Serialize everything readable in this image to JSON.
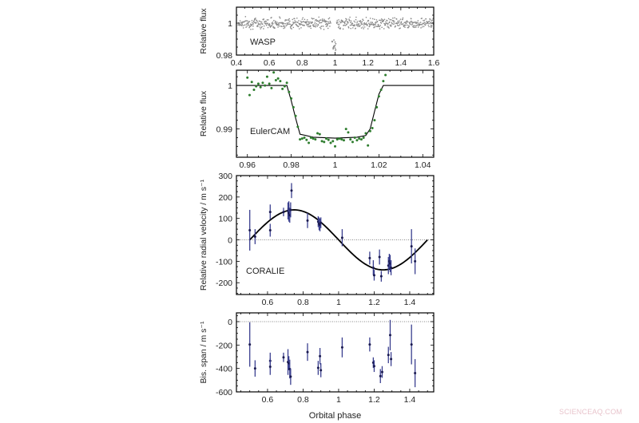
{
  "watermark": "SCIENCEAQ.COM",
  "colors": {
    "wasp_points": "#8a8a8a",
    "euler_points": "#2e7d2e",
    "rv_points": "#1a1a50",
    "rv_errorbars": "#3a3f8f",
    "model_line": "#000000",
    "axis": "#000000",
    "text": "#222222",
    "zero_line": "#888888"
  },
  "chart_data": [
    {
      "type": "scatter",
      "panel_label": "WASP",
      "ylabel": "Relative flux",
      "xlabel": "",
      "xlim": [
        0.4,
        1.6
      ],
      "ylim": [
        0.98,
        1.01
      ],
      "xticks": [
        "0.4",
        "0.6",
        "0.8",
        "1",
        "1.2",
        "1.4",
        "1.6"
      ],
      "xtick_values": [
        0.4,
        0.6,
        0.8,
        1.0,
        1.2,
        1.4,
        1.6
      ],
      "yticks": [
        "0.98",
        "1"
      ],
      "ytick_values": [
        0.98,
        1.0
      ],
      "description": "Dense photometry scattered around 1.0 (scatter ~±0.003) across phase 0.4–1.6, with transit dip to ~0.987 near phase 1.0 and a gap 0.98–1.01",
      "baseline": 1.0,
      "scatter": 0.0025,
      "transit": {
        "center": 0.995,
        "depth": 0.012,
        "width": 0.04
      }
    },
    {
      "type": "scatter",
      "panel_label": "EulerCAM",
      "ylabel": "Relative flux",
      "xlabel": "",
      "xlim": [
        0.955,
        1.045
      ],
      "ylim": [
        0.9835,
        1.0035
      ],
      "xticks": [
        "0.96",
        "0.98",
        "1",
        "1.02",
        "1.04"
      ],
      "xtick_values": [
        0.96,
        0.98,
        1.0,
        1.02,
        1.04
      ],
      "yticks": [
        "0.99",
        "1"
      ],
      "ytick_values": [
        0.99,
        1.0
      ],
      "model": {
        "type": "line",
        "x": [
          0.955,
          0.978,
          0.98,
          0.982,
          0.984,
          0.99,
          1.0,
          1.01,
          1.014,
          1.016,
          1.018,
          1.02,
          1.022,
          1.045
        ],
        "y": [
          1.0,
          1.0,
          0.9965,
          0.9925,
          0.9888,
          0.9881,
          0.9879,
          0.9881,
          0.9885,
          0.99,
          0.994,
          0.998,
          1.0,
          1.0
        ]
      },
      "x": [
        0.96,
        0.961,
        0.962,
        0.963,
        0.964,
        0.965,
        0.966,
        0.967,
        0.968,
        0.969,
        0.97,
        0.971,
        0.972,
        0.973,
        0.974,
        0.975,
        0.976,
        0.977,
        0.978,
        0.979,
        0.98,
        0.981,
        0.982,
        0.983,
        0.984,
        0.985,
        0.986,
        0.987,
        0.988,
        0.989,
        0.99,
        0.991,
        0.992,
        0.993,
        0.994,
        0.995,
        0.996,
        0.997,
        0.998,
        0.999,
        1.0,
        1.001,
        1.002,
        1.003,
        1.004,
        1.005,
        1.006,
        1.007,
        1.008,
        1.009,
        1.01,
        1.011,
        1.012,
        1.013,
        1.014,
        1.015,
        1.016,
        1.017,
        1.018,
        1.019,
        1.02,
        1.021,
        1.022,
        1.023
      ],
      "y": [
        1.0018,
        0.9978,
        1.0008,
        0.999,
        0.9998,
        1.0004,
        0.9996,
        1.0006,
        1.0,
        1.002,
        1.0004,
        0.9994,
        1.003,
        1.0012,
        1.0016,
        1.001,
        0.9992,
        0.9998,
        1.0006,
        0.9985,
        0.997,
        0.995,
        0.993,
        0.9905,
        0.9876,
        0.9878,
        0.988,
        0.9875,
        0.9868,
        0.988,
        0.9878,
        0.9876,
        0.989,
        0.9888,
        0.9872,
        0.987,
        0.9878,
        0.9875,
        0.9868,
        0.9872,
        0.986,
        0.9876,
        0.9878,
        0.9876,
        0.9874,
        0.99,
        0.9892,
        0.9876,
        0.987,
        0.988,
        0.9874,
        0.9878,
        0.9876,
        0.988,
        0.989,
        0.9862,
        0.9895,
        0.9902,
        0.992,
        0.995,
        0.9975,
        0.999,
        1.001,
        1.0024
      ]
    },
    {
      "type": "scatter",
      "panel_label": "CORALIE",
      "ylabel": "Relative radial velocity / m s⁻¹",
      "xlabel": "",
      "xlim": [
        0.425,
        1.535
      ],
      "ylim": [
        -255,
        300
      ],
      "xticks": [
        "0.6",
        "0.8",
        "1",
        "1.2",
        "1.4"
      ],
      "xtick_values": [
        0.6,
        0.8,
        1.0,
        1.2,
        1.4
      ],
      "yticks": [
        "300",
        "200",
        "100",
        "0",
        "-100",
        "-200"
      ],
      "ytick_values": [
        300,
        200,
        100,
        0,
        -100,
        -200
      ],
      "model": {
        "type": "sine",
        "amplitude": 140,
        "phase_zero": 0.5,
        "x_range": [
          0.5,
          1.5
        ]
      },
      "zero_line": true,
      "x": [
        0.5,
        0.53,
        0.615,
        0.615,
        0.69,
        0.715,
        0.72,
        0.72,
        0.725,
        0.73,
        0.735,
        0.825,
        0.885,
        0.89,
        0.895,
        0.9,
        1.02,
        1.175,
        1.195,
        1.2,
        1.23,
        1.24,
        1.28,
        1.285,
        1.29,
        1.295,
        1.41,
        1.43
      ],
      "values": [
        45,
        15,
        130,
        45,
        130,
        135,
        145,
        125,
        115,
        140,
        230,
        90,
        85,
        75,
        70,
        80,
        10,
        -85,
        -130,
        -165,
        -80,
        -170,
        -120,
        -100,
        -110,
        -130,
        -30,
        -100
      ],
      "errors": [
        95,
        35,
        35,
        30,
        20,
        40,
        35,
        40,
        35,
        35,
        35,
        35,
        25,
        30,
        30,
        25,
        40,
        30,
        35,
        25,
        35,
        25,
        40,
        35,
        40,
        35,
        80,
        60
      ]
    },
    {
      "type": "scatter",
      "panel_label": "",
      "ylabel": "Bis. span / m s⁻¹",
      "xlabel": "Orbital phase",
      "xlim": [
        0.425,
        1.535
      ],
      "ylim": [
        -600,
        75
      ],
      "xticks": [
        "0.6",
        "0.8",
        "1",
        "1.2",
        "1.4"
      ],
      "xtick_values": [
        0.6,
        0.8,
        1.0,
        1.2,
        1.4
      ],
      "yticks": [
        "0",
        "-200",
        "-400",
        "-600"
      ],
      "ytick_values": [
        0,
        -200,
        -400,
        -600
      ],
      "zero_line": true,
      "x": [
        0.5,
        0.53,
        0.615,
        0.615,
        0.69,
        0.715,
        0.72,
        0.725,
        0.73,
        0.825,
        0.885,
        0.895,
        0.9,
        1.02,
        1.175,
        1.195,
        1.2,
        1.235,
        1.245,
        1.28,
        1.29,
        1.295,
        1.41,
        1.43
      ],
      "values": [
        -195,
        -400,
        -335,
        -385,
        -305,
        -345,
        -355,
        -405,
        -470,
        -260,
        -395,
        -295,
        -415,
        -220,
        -195,
        -350,
        -380,
        -465,
        -430,
        -285,
        -115,
        -320,
        -195,
        -440
      ],
      "errors": [
        190,
        70,
        70,
        70,
        40,
        110,
        60,
        80,
        70,
        75,
        60,
        70,
        60,
        85,
        60,
        45,
        50,
        60,
        50,
        70,
        130,
        60,
        170,
        120
      ]
    }
  ]
}
